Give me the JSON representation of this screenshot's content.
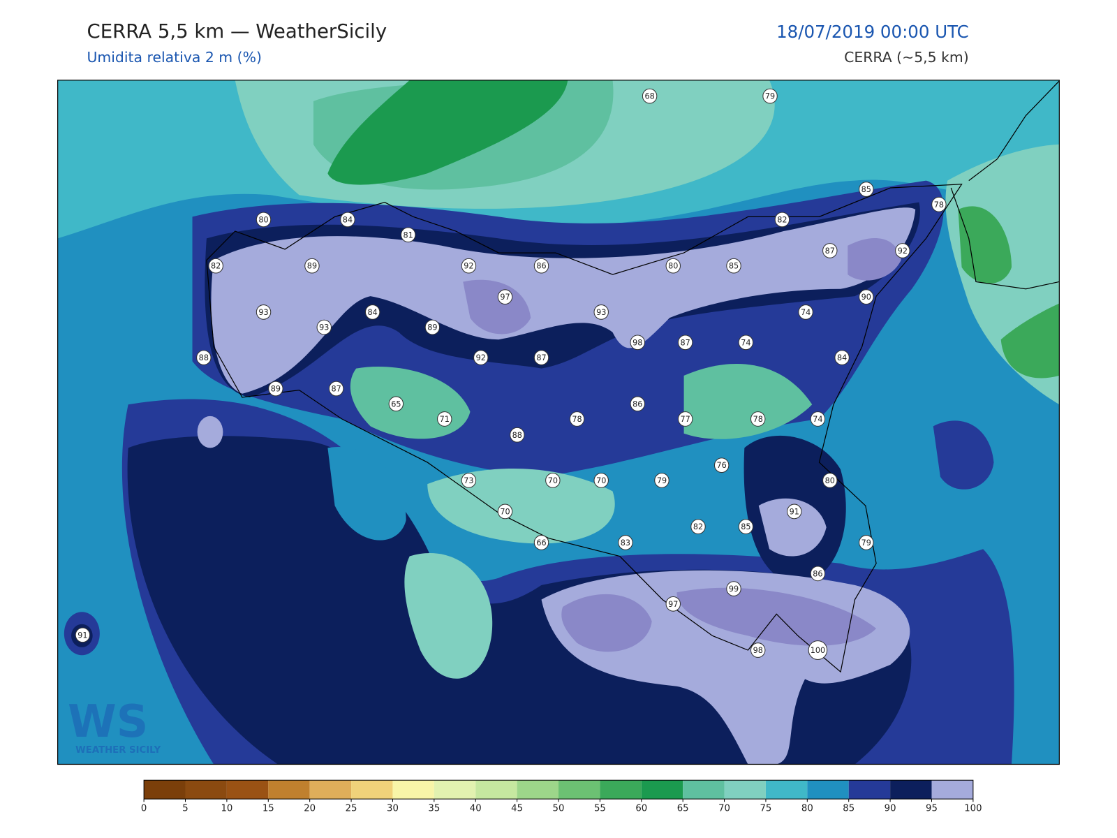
{
  "header": {
    "title": "CERRA 5,5 km — WeatherSicily",
    "subtitle": "Umidita relativa 2 m (%)",
    "datetime": "18/07/2019 00:00 UTC",
    "model": "CERRA (~5,5 km)"
  },
  "stations": [
    68,
    79,
    80,
    84,
    81,
    82,
    85,
    78,
    82,
    89,
    92,
    86,
    80,
    85,
    87,
    92,
    97,
    90,
    93,
    93,
    84,
    89,
    93,
    74,
    98,
    87,
    74,
    88,
    92,
    87,
    84,
    89,
    87,
    65,
    71,
    78,
    86,
    77,
    78,
    74,
    88,
    76,
    73,
    70,
    70,
    79,
    80,
    91,
    70,
    82,
    85,
    66,
    83,
    79,
    86,
    99,
    97,
    91,
    98,
    100
  ],
  "colorbar": {
    "ticks": [
      0,
      5,
      10,
      15,
      20,
      25,
      30,
      35,
      40,
      45,
      50,
      55,
      60,
      65,
      70,
      75,
      80,
      85,
      90,
      95,
      100
    ],
    "colors": [
      "#7b3f0a",
      "#8b4a10",
      "#9a5214",
      "#c0802e",
      "#dfae5a",
      "#f0d27a",
      "#f8f5a8",
      "#e2f2b0",
      "#c6e8a0",
      "#9dd68a",
      "#6cc173",
      "#3ba95a",
      "#1b9a4f",
      "#5fc0a0",
      "#80d0c0",
      "#40b8c8",
      "#2090c0",
      "#253a98",
      "#0c1f5c",
      "#a5abdc",
      "#8a88c8"
    ]
  },
  "logo": {
    "letters": "WS",
    "text": "WEATHER SICILY"
  }
}
